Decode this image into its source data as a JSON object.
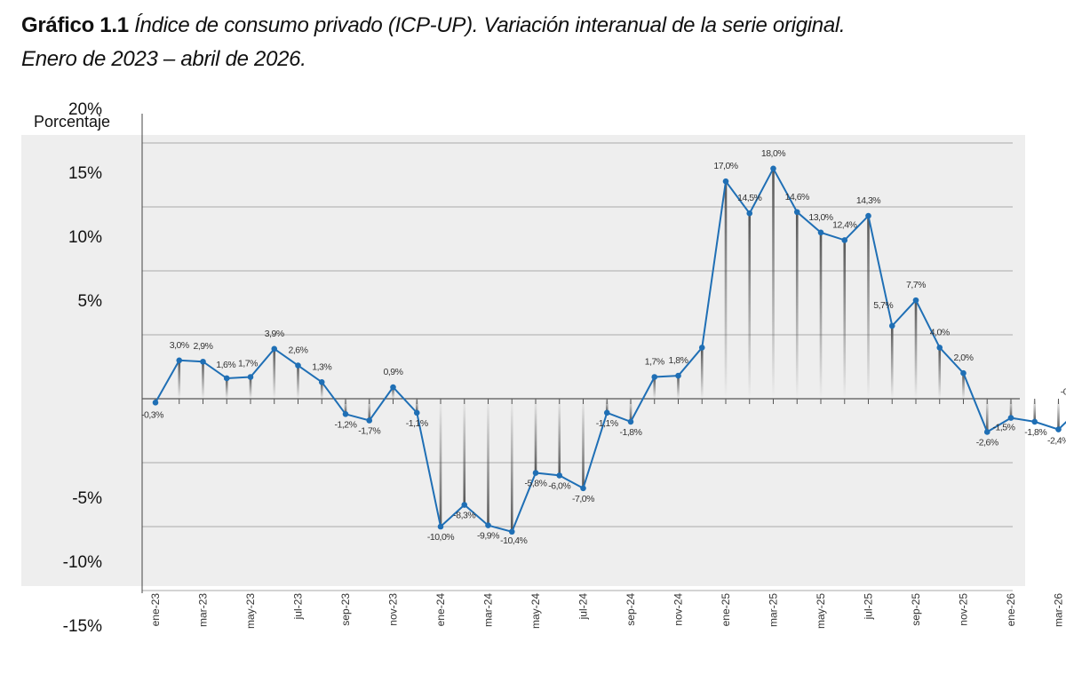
{
  "header": {
    "label": "Gráfico 1.1",
    "text_line1": "Índice de consumo privado (ICP-UP). Variación interanual de la serie original.",
    "text_line2": "Enero de 2023 – abril de 2026."
  },
  "chart_data": {
    "type": "line",
    "title": "Gráfico 1.1 Índice de consumo privado (ICP-UP). Variación interanual de la serie original. Enero de 2023 – abril de 2026.",
    "ylabel": "Porcentaje",
    "xlabel": "",
    "ylim": [
      -15,
      20
    ],
    "grid": true,
    "y_ticks": [
      20,
      15,
      10,
      5,
      -5,
      -10,
      -15
    ],
    "y_tick_labels": [
      "20%",
      "15%",
      "10%",
      "5%",
      "-5%",
      "-10%",
      "-15%"
    ],
    "x_tick_labels": [
      "ene-23",
      "mar-23",
      "may-23",
      "jul-23",
      "sep-23",
      "nov-23",
      "ene-24",
      "mar-24",
      "may-24",
      "jul-24",
      "sep-24",
      "nov-24",
      "ene-25",
      "mar-25",
      "may-25",
      "jul-25",
      "sep-25",
      "nov-25",
      "ene-26",
      "mar-26"
    ],
    "x": [
      "ene-23",
      "feb-23",
      "mar-23",
      "abr-23",
      "may-23",
      "jun-23",
      "jul-23",
      "ago-23",
      "sep-23",
      "oct-23",
      "nov-23",
      "dic-23",
      "ene-24",
      "feb-24",
      "mar-24",
      "abr-24",
      "may-24",
      "jun-24",
      "jul-24",
      "ago-24",
      "sep-24",
      "oct-24",
      "nov-24",
      "dic-24",
      "ene-25",
      "feb-25",
      "mar-25",
      "abr-25",
      "may-25",
      "jun-25",
      "jul-25",
      "ago-25",
      "sep-25",
      "oct-25",
      "nov-25",
      "dic-25",
      "ene-26",
      "feb-26",
      "mar-26",
      "abr-26"
    ],
    "series": [
      {
        "name": "",
        "color": "#1f6fb5",
        "values": [
          -0.3,
          3.0,
          2.9,
          1.6,
          1.7,
          3.9,
          2.6,
          1.3,
          -1.2,
          -1.7,
          0.9,
          -1.1,
          -10.0,
          -8.3,
          -9.9,
          -10.4,
          -5.8,
          -6.0,
          -7.0,
          -1.1,
          -1.8,
          1.7,
          1.8,
          4.0,
          17.0,
          14.5,
          18.0,
          14.6,
          13.0,
          12.4,
          14.3,
          5.7,
          7.7,
          4.0,
          2.0,
          -2.6,
          -1.5,
          -1.8,
          -2.4,
          -0.6
        ],
        "data_labels": [
          "-0,3%",
          "3,0%",
          "2,9%",
          "1,6%",
          "1,7%",
          "3,9%",
          "2,6%",
          "1,3%",
          "-1,2%",
          "-1,7%",
          "0,9%",
          "-1,1%",
          "-10,0%",
          "-8,3%",
          "-9,9%",
          "-10,4%",
          "-5,8%",
          "-6,0%",
          "-7,0%",
          "-1,1%",
          "-1,8%",
          "1,7%",
          "1,8%",
          "4,0%",
          "17,0%",
          "14,5%",
          "18,0%",
          "14,6%",
          "13,0%",
          "12,4%",
          "14,3%",
          "5,7%",
          "7,7%",
          "4,0%",
          "2,0%",
          "-2,6%",
          "-1,5%",
          "-1,8%",
          "-2,4%",
          "-0,6%"
        ],
        "labeled_points": [
          0,
          1,
          2,
          3,
          4,
          5,
          6,
          7,
          8,
          9,
          10,
          11,
          12,
          13,
          14,
          15,
          16,
          17,
          18,
          19,
          20,
          21,
          22,
          24,
          25,
          26,
          27,
          28,
          29,
          30,
          31,
          32,
          33,
          34,
          35,
          36,
          37,
          38,
          39
        ]
      }
    ],
    "colors": {
      "line": "#1f6fb5",
      "plot_bg": "#eeeeee",
      "grid": "#aaaaaa",
      "drop_lines": "#666666"
    }
  }
}
